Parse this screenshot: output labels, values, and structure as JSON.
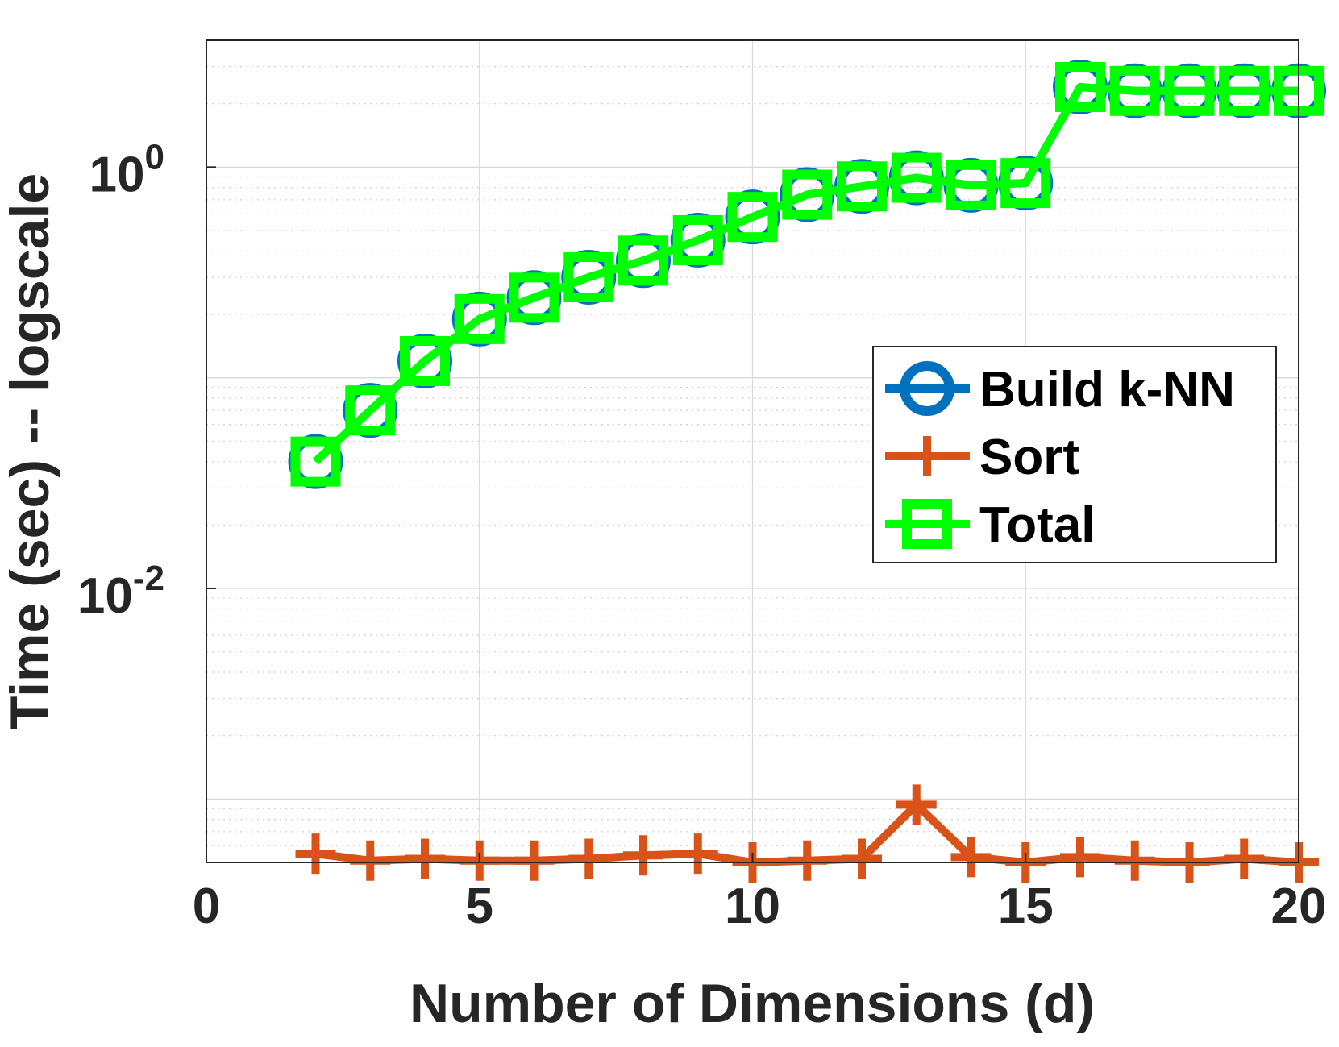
{
  "chart_data": {
    "type": "line",
    "xlabel": "Number of Dimensions (d)",
    "ylabel": "Time (sec) -- logscale",
    "xlim": [
      0,
      20
    ],
    "ylim": [
      0.0005,
      4
    ],
    "y_scale": "log",
    "grid": true,
    "minor_grid": true,
    "legend_position": "right",
    "x_ticks": [
      "0",
      "5",
      "10",
      "15",
      "20"
    ],
    "y_ticks": [
      {
        "base": "10",
        "exp": "0",
        "value": 1
      },
      {
        "base": "10",
        "exp": "-2",
        "value": 0.01
      }
    ],
    "x": [
      2,
      3,
      4,
      5,
      6,
      7,
      8,
      9,
      10,
      11,
      12,
      13,
      14,
      15,
      16,
      17,
      18,
      19,
      20
    ],
    "series": [
      {
        "name": "Build k-NN",
        "color": "#0072BD",
        "marker": "circle",
        "values": [
          0.04,
          0.07,
          0.12,
          0.19,
          0.24,
          0.3,
          0.36,
          0.45,
          0.58,
          0.74,
          0.81,
          0.89,
          0.82,
          0.84,
          2.4,
          2.3,
          2.3,
          2.3,
          2.3
        ]
      },
      {
        "name": "Sort",
        "color": "#D95319",
        "marker": "plus",
        "values": [
          0.00055,
          0.00051,
          0.00052,
          0.00051,
          0.00051,
          0.00052,
          0.00054,
          0.00055,
          0.0005,
          0.00051,
          0.00052,
          0.00094,
          0.00053,
          0.0005,
          0.00053,
          0.00051,
          0.0005,
          0.00052,
          0.0005
        ]
      },
      {
        "name": "Total",
        "color": "#00FF00",
        "marker": "square",
        "values": [
          0.04,
          0.07,
          0.12,
          0.19,
          0.24,
          0.3,
          0.36,
          0.45,
          0.58,
          0.74,
          0.81,
          0.89,
          0.82,
          0.84,
          2.4,
          2.3,
          2.3,
          2.3,
          2.3
        ]
      }
    ]
  }
}
